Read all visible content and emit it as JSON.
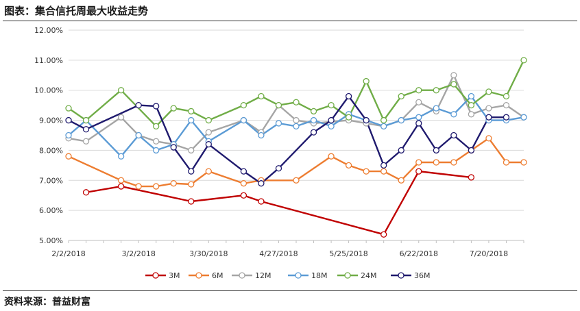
{
  "header": {
    "title": "图表：集合信托周最大收益走势"
  },
  "footer": {
    "source": "资料来源：普益财富"
  },
  "chart_data": {
    "type": "line",
    "x_tick_labels": [
      "2/2/2018",
      "3/2/2018",
      "3/30/2018",
      "4/27/2018",
      "5/25/2018",
      "6/22/2018",
      "7/20/2018"
    ],
    "y_tick_labels": [
      "5.00%",
      "6.00%",
      "7.00%",
      "8.00%",
      "9.00%",
      "10.00%",
      "11.00%",
      "12.00%"
    ],
    "ylim": [
      5,
      12
    ],
    "x_weeks": 27,
    "grid": "horizontal",
    "legend_position": "bottom",
    "series": [
      {
        "name": "3M",
        "color": "#c00000",
        "points": [
          [
            1,
            6.6
          ],
          [
            3,
            6.8
          ],
          [
            7,
            6.3
          ],
          [
            10,
            6.5
          ],
          [
            11,
            6.3
          ],
          [
            18,
            5.2
          ],
          [
            20,
            7.3
          ],
          [
            23,
            7.1
          ]
        ]
      },
      {
        "name": "6M",
        "color": "#ed7d31",
        "points": [
          [
            0,
            7.8
          ],
          [
            3,
            7.0
          ],
          [
            4,
            6.8
          ],
          [
            5,
            6.8
          ],
          [
            6,
            6.9
          ],
          [
            7,
            6.87
          ],
          [
            8,
            7.3
          ],
          [
            10,
            6.9
          ],
          [
            11,
            7.0
          ],
          [
            13,
            7.0
          ],
          [
            15,
            7.8
          ],
          [
            16,
            7.5
          ],
          [
            17,
            7.3
          ],
          [
            18,
            7.3
          ],
          [
            19,
            7.0
          ],
          [
            20,
            7.6
          ],
          [
            21,
            7.6
          ],
          [
            22,
            7.6
          ],
          [
            23,
            8.0
          ],
          [
            24,
            8.4
          ],
          [
            25,
            7.6
          ],
          [
            26,
            7.6
          ]
        ]
      },
      {
        "name": "12M",
        "color": "#a5a5a5",
        "points": [
          [
            0,
            8.4
          ],
          [
            1,
            8.3
          ],
          [
            3,
            9.1
          ],
          [
            4,
            8.5
          ],
          [
            5,
            8.3
          ],
          [
            6,
            8.2
          ],
          [
            7,
            8.0
          ],
          [
            8,
            8.6
          ],
          [
            10,
            9.0
          ],
          [
            11,
            8.6
          ],
          [
            12,
            9.5
          ],
          [
            13,
            9.0
          ],
          [
            14,
            8.9
          ],
          [
            16,
            9.0
          ],
          [
            17,
            8.9
          ],
          [
            18,
            8.8
          ],
          [
            19,
            9.0
          ],
          [
            20,
            9.6
          ],
          [
            21,
            9.3
          ],
          [
            22,
            10.5
          ],
          [
            23,
            9.2
          ],
          [
            24,
            9.4
          ],
          [
            25,
            9.5
          ],
          [
            26,
            9.1
          ]
        ]
      },
      {
        "name": "18M",
        "color": "#5b9bd5",
        "points": [
          [
            0,
            8.5
          ],
          [
            1,
            9.0
          ],
          [
            3,
            7.8
          ],
          [
            4,
            8.5
          ],
          [
            5,
            8.0
          ],
          [
            6,
            8.2
          ],
          [
            7,
            9.0
          ],
          [
            8,
            8.3
          ],
          [
            10,
            9.0
          ],
          [
            11,
            8.5
          ],
          [
            12,
            8.9
          ],
          [
            13,
            8.8
          ],
          [
            14,
            9.0
          ],
          [
            15,
            8.8
          ],
          [
            16,
            9.2
          ],
          [
            17,
            9.0
          ],
          [
            18,
            8.8
          ],
          [
            19,
            9.0
          ],
          [
            20,
            9.1
          ],
          [
            21,
            9.4
          ],
          [
            22,
            9.2
          ],
          [
            23,
            9.8
          ],
          [
            24,
            9.0
          ],
          [
            25,
            9.0
          ],
          [
            26,
            9.1
          ]
        ]
      },
      {
        "name": "24M",
        "color": "#70ad47",
        "points": [
          [
            0,
            9.4
          ],
          [
            1,
            9.0
          ],
          [
            3,
            10.0
          ],
          [
            5,
            8.8
          ],
          [
            6,
            9.4
          ],
          [
            7,
            9.3
          ],
          [
            8,
            9.0
          ],
          [
            10,
            9.5
          ],
          [
            11,
            9.8
          ],
          [
            12,
            9.5
          ],
          [
            13,
            9.6
          ],
          [
            14,
            9.3
          ],
          [
            15,
            9.5
          ],
          [
            16,
            9.1
          ],
          [
            17,
            10.3
          ],
          [
            18,
            9.0
          ],
          [
            19,
            9.8
          ],
          [
            20,
            10.0
          ],
          [
            21,
            10.0
          ],
          [
            22,
            10.2
          ],
          [
            23,
            9.5
          ],
          [
            24,
            9.95
          ],
          [
            25,
            9.8
          ],
          [
            26,
            11.0
          ]
        ]
      },
      {
        "name": "36M",
        "color": "#1f1a6e",
        "points": [
          [
            0,
            9.0
          ],
          [
            1,
            8.7
          ],
          [
            4,
            9.5
          ],
          [
            5,
            9.47
          ],
          [
            6,
            8.1
          ],
          [
            7,
            7.3
          ],
          [
            8,
            8.2
          ],
          [
            10,
            7.3
          ],
          [
            11,
            6.9
          ],
          [
            12,
            7.4
          ],
          [
            14,
            8.6
          ],
          [
            15,
            9.0
          ],
          [
            16,
            9.8
          ],
          [
            17,
            9.0
          ],
          [
            18,
            7.5
          ],
          [
            19,
            8.0
          ],
          [
            20,
            8.9
          ],
          [
            21,
            8.0
          ],
          [
            22,
            8.5
          ],
          [
            23,
            8.0
          ],
          [
            24,
            9.1
          ],
          [
            25,
            9.1
          ]
        ]
      }
    ]
  }
}
